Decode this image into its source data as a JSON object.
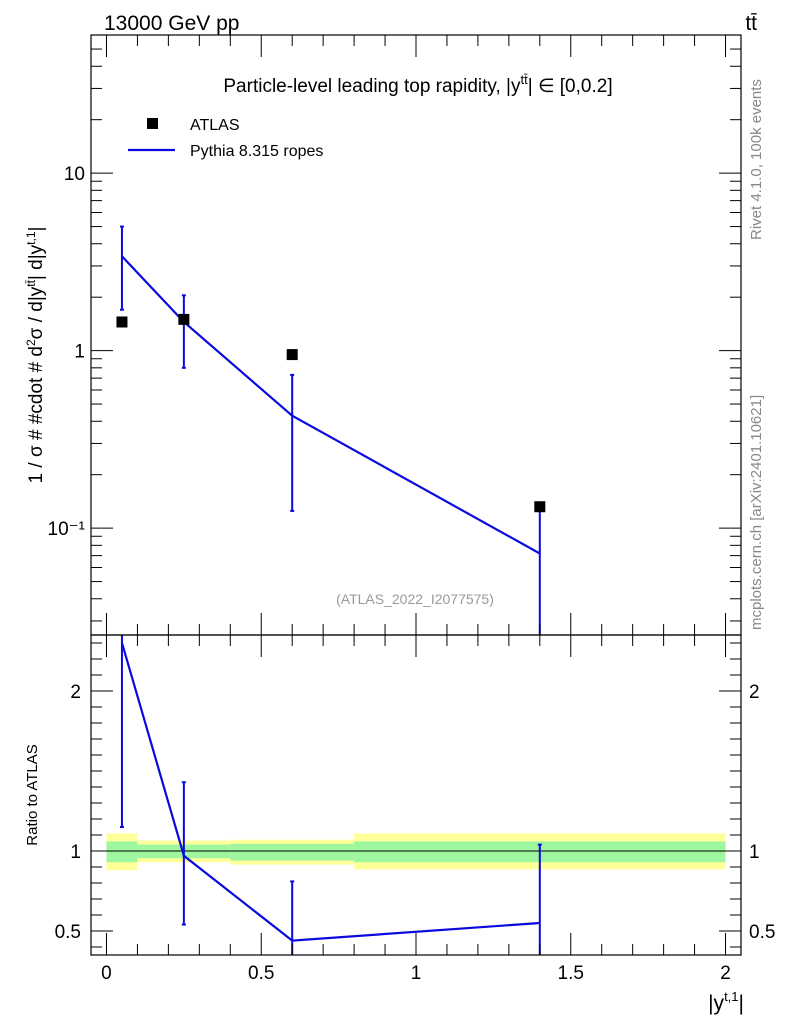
{
  "header": {
    "left": "13000 GeV pp",
    "right": "tt̄",
    "side_top": "Rivet 4.1.0,  100k events",
    "side_bottom": "mcplots.cern.ch [arXiv:2401.10621]",
    "watermark": "(ATLAS_2022_I2077575)"
  },
  "colors": {
    "mc": "#0a0adf",
    "data": "#000000",
    "band_green": "#9ef79e",
    "band_yellow": "#ffff99"
  },
  "chart_data": [
    {
      "type": "scatter",
      "panel": "main",
      "title": "Particle-level leading top rapidity, |y^{tt̄}| ∈ [0,0.2]",
      "xlabel": "|y^{t,1}|",
      "ylabel": "1 / σ # #cdot # d²σ / d|y^{tt̄}| d|y^{t,1}|",
      "yscale": "log",
      "xlim": [
        -0.05,
        2.05
      ],
      "ylim": [
        0.025,
        60
      ],
      "ytick_labels": [
        "10⁻¹",
        "1",
        "10"
      ],
      "yticks": [
        0.1,
        1,
        10
      ],
      "legend": {
        "position": "top-left",
        "entries": [
          "ATLAS",
          "Pythia 8.315 ropes"
        ]
      },
      "series": [
        {
          "name": "ATLAS",
          "style": "marker",
          "x": [
            0.05,
            0.25,
            0.6,
            1.4
          ],
          "values": [
            1.45,
            1.5,
            0.95,
            0.132
          ]
        },
        {
          "name": "Pythia 8.315 ropes",
          "style": "line",
          "x": [
            0.05,
            0.25,
            0.6,
            1.4
          ],
          "values": [
            3.4,
            1.45,
            0.43,
            0.072
          ],
          "err_low": [
            1.7,
            0.8,
            0.125,
            0.0
          ],
          "err_high": [
            5.0,
            2.05,
            0.73,
            0.133
          ]
        }
      ]
    },
    {
      "type": "line",
      "panel": "ratio",
      "xlabel": "|y^{t,1}|",
      "ylabel": "Ratio to ATLAS",
      "xlim": [
        -0.05,
        2.05
      ],
      "ylim": [
        0.35,
        2.35
      ],
      "xticks": [
        0,
        0.5,
        1,
        1.5,
        2
      ],
      "xtick_labels": [
        "0",
        "0.5",
        "1",
        "1.5",
        "2"
      ],
      "yticks": [
        0.5,
        1,
        2
      ],
      "ytick_labels": [
        "0.5",
        "1",
        "2"
      ],
      "bands": [
        {
          "x_low": 0.0,
          "x_high": 0.1,
          "green": [
            0.93,
            1.06
          ],
          "yellow": [
            0.88,
            1.11
          ]
        },
        {
          "x_low": 0.1,
          "x_high": 0.4,
          "green": [
            0.955,
            1.04
          ],
          "yellow": [
            0.93,
            1.065
          ]
        },
        {
          "x_low": 0.4,
          "x_high": 0.8,
          "green": [
            0.94,
            1.045
          ],
          "yellow": [
            0.915,
            1.07
          ]
        },
        {
          "x_low": 0.8,
          "x_high": 2.0,
          "green": [
            0.93,
            1.06
          ],
          "yellow": [
            0.885,
            1.11
          ]
        }
      ],
      "series": [
        {
          "name": "Pythia 8.315 ropes / ATLAS",
          "x": [
            0.05,
            0.25,
            0.6,
            1.4
          ],
          "values": [
            2.3,
            0.97,
            0.44,
            0.55
          ],
          "err_low": [
            1.15,
            0.54,
            0.35,
            0.3
          ],
          "err_high": [
            2.35,
            1.43,
            0.81,
            1.04
          ]
        }
      ]
    }
  ]
}
